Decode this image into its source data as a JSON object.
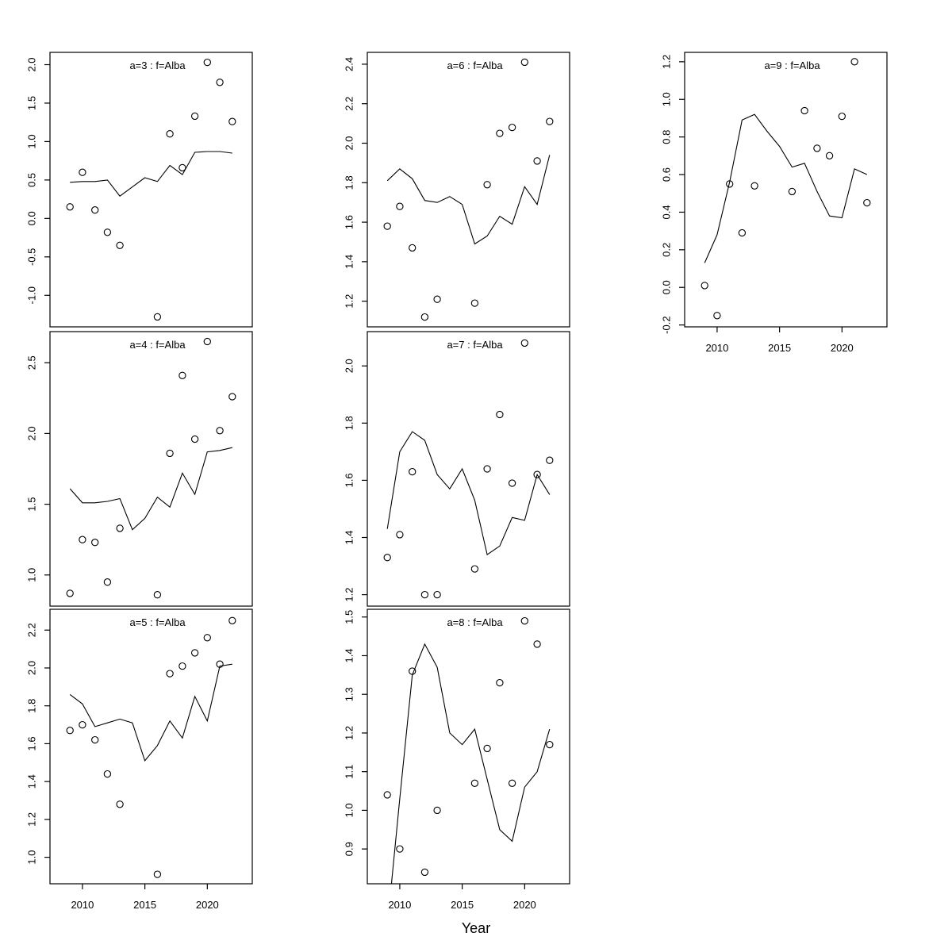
{
  "figure": {
    "xlabel": "Year",
    "colors": {
      "background": "#ffffff",
      "frame": "#000000",
      "line": "#000000",
      "point": "#000000",
      "title": "#7d7d7d",
      "tick_label": "#000000"
    },
    "x": {
      "lim": [
        2007.4,
        2023.6
      ],
      "ticks": [
        2010,
        2015,
        2020
      ],
      "tick_labels": [
        "2010",
        "2015",
        "2020"
      ]
    },
    "point_years": [
      2009,
      2010,
      2011,
      2012,
      2013,
      2016,
      2017,
      2018,
      2019,
      2020,
      2021,
      2022
    ],
    "line_years": [
      2009,
      2010,
      2011,
      2012,
      2013,
      2014,
      2015,
      2016,
      2017,
      2018,
      2019,
      2020,
      2021,
      2022
    ]
  },
  "chart_data": [
    {
      "id": "a3",
      "type": "scatter",
      "title": "a=3 : f=Alba",
      "row": 0,
      "col": 0,
      "show_x_axis": false,
      "ylim": [
        -1.41,
        2.16
      ],
      "y_ticks": [
        -1.0,
        -0.5,
        0.0,
        0.5,
        1.0,
        1.5,
        2.0
      ],
      "y_tick_labels": [
        "-1.0",
        "-0.5",
        "0.0",
        "0.5",
        "1.0",
        "1.5",
        "2.0"
      ],
      "points": [
        0.15,
        0.6,
        0.11,
        -0.18,
        -0.35,
        -1.28,
        1.1,
        0.66,
        1.33,
        2.03,
        1.77,
        1.26
      ],
      "line": [
        0.47,
        0.48,
        0.48,
        0.5,
        0.29,
        0.41,
        0.53,
        0.48,
        0.69,
        0.57,
        0.86,
        0.87,
        0.87,
        0.85
      ]
    },
    {
      "id": "a4",
      "type": "scatter",
      "title": "a=4 : f=Alba",
      "row": 1,
      "col": 0,
      "show_x_axis": false,
      "ylim": [
        0.78,
        2.72
      ],
      "y_ticks": [
        1.0,
        1.5,
        2.0,
        2.5
      ],
      "y_tick_labels": [
        "1.0",
        "1.5",
        "2.0",
        "2.5"
      ],
      "points": [
        0.87,
        1.25,
        1.23,
        0.95,
        1.33,
        0.86,
        1.86,
        2.41,
        1.96,
        2.65,
        2.02,
        2.26
      ],
      "line": [
        1.61,
        1.51,
        1.51,
        1.52,
        1.54,
        1.32,
        1.4,
        1.55,
        1.48,
        1.72,
        1.57,
        1.87,
        1.88,
        1.9
      ]
    },
    {
      "id": "a5",
      "type": "scatter",
      "title": "a=5 : f=Alba",
      "row": 2,
      "col": 0,
      "show_x_axis": true,
      "ylim": [
        0.86,
        2.31
      ],
      "y_ticks": [
        1.0,
        1.2,
        1.4,
        1.6,
        1.8,
        2.0,
        2.2
      ],
      "y_tick_labels": [
        "1.0",
        "1.2",
        "1.4",
        "1.6",
        "1.8",
        "2.0",
        "2.2"
      ],
      "points": [
        1.67,
        1.7,
        1.62,
        1.44,
        1.28,
        0.91,
        1.97,
        2.01,
        2.08,
        2.16,
        2.02,
        2.25
      ],
      "line": [
        1.86,
        1.81,
        1.69,
        1.71,
        1.73,
        1.71,
        1.51,
        1.59,
        1.72,
        1.63,
        1.85,
        1.72,
        2.01,
        2.02
      ]
    },
    {
      "id": "a6",
      "type": "scatter",
      "title": "a=6 : f=Alba",
      "row": 0,
      "col": 1,
      "show_x_axis": false,
      "ylim": [
        1.07,
        2.46
      ],
      "y_ticks": [
        1.2,
        1.4,
        1.6,
        1.8,
        2.0,
        2.2,
        2.4
      ],
      "y_tick_labels": [
        "1.2",
        "1.4",
        "1.6",
        "1.8",
        "2.0",
        "2.2",
        "2.4"
      ],
      "points": [
        1.58,
        1.68,
        1.47,
        1.12,
        1.21,
        1.19,
        1.79,
        2.05,
        2.08,
        2.41,
        1.91,
        2.11
      ],
      "line": [
        1.81,
        1.87,
        1.82,
        1.71,
        1.7,
        1.73,
        1.69,
        1.49,
        1.53,
        1.63,
        1.59,
        1.78,
        1.69,
        1.94
      ]
    },
    {
      "id": "a7",
      "type": "scatter",
      "title": "a=7 : f=Alba",
      "row": 1,
      "col": 1,
      "show_x_axis": false,
      "ylim": [
        1.16,
        2.12
      ],
      "y_ticks": [
        1.2,
        1.4,
        1.6,
        1.8,
        2.0
      ],
      "y_tick_labels": [
        "1.2",
        "1.4",
        "1.6",
        "1.8",
        "2.0"
      ],
      "points": [
        1.33,
        1.41,
        1.63,
        1.2,
        1.2,
        1.29,
        1.64,
        1.83,
        1.59,
        2.08,
        1.62,
        1.67
      ],
      "line": [
        1.43,
        1.7,
        1.77,
        1.74,
        1.62,
        1.57,
        1.64,
        1.53,
        1.34,
        1.37,
        1.47,
        1.46,
        1.62,
        1.55
      ]
    },
    {
      "id": "a8",
      "type": "scatter",
      "title": "a=8 : f=Alba",
      "row": 2,
      "col": 1,
      "show_x_axis": true,
      "ylim": [
        0.81,
        1.52
      ],
      "y_ticks": [
        0.9,
        1.0,
        1.1,
        1.2,
        1.3,
        1.4,
        1.5
      ],
      "y_tick_labels": [
        "0.9",
        "1.0",
        "1.1",
        "1.2",
        "1.3",
        "1.4",
        "1.5"
      ],
      "points": [
        1.04,
        0.9,
        1.36,
        0.84,
        1.0,
        1.07,
        1.16,
        1.33,
        1.07,
        1.49,
        1.43,
        1.17
      ],
      "line": [
        0.7,
        1.03,
        1.35,
        1.43,
        1.37,
        1.2,
        1.17,
        1.21,
        1.08,
        0.95,
        0.92,
        1.06,
        1.1,
        1.21
      ]
    },
    {
      "id": "a9",
      "type": "scatter",
      "title": "a=9 : f=Alba",
      "row": 0,
      "col": 2,
      "show_x_axis": true,
      "ylim": [
        -0.21,
        1.25
      ],
      "y_ticks": [
        -0.2,
        0.0,
        0.2,
        0.4,
        0.6,
        0.8,
        1.0,
        1.2
      ],
      "y_tick_labels": [
        "-0.2",
        "0.0",
        "0.2",
        "0.4",
        "0.6",
        "0.8",
        "1.0",
        "1.2"
      ],
      "points": [
        0.01,
        -0.15,
        0.55,
        0.29,
        0.54,
        0.51,
        0.94,
        0.74,
        0.7,
        0.91,
        1.2,
        0.45
      ],
      "line": [
        0.13,
        0.28,
        0.56,
        0.89,
        0.92,
        0.83,
        0.75,
        0.64,
        0.66,
        0.51,
        0.38,
        0.37,
        0.63,
        0.6
      ]
    }
  ]
}
